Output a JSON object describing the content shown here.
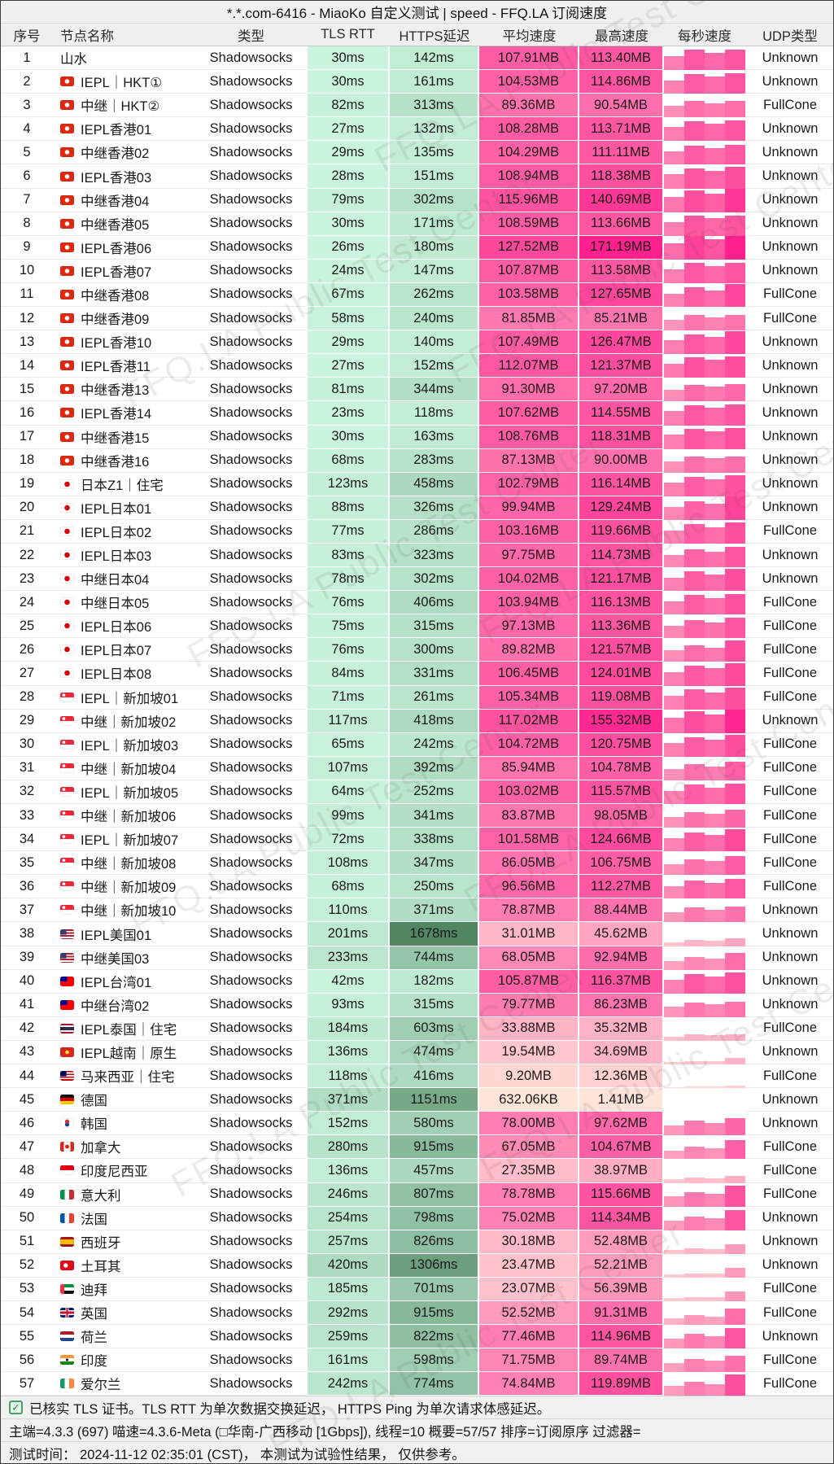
{
  "window_title": "*.*.com-6416 - MiaoKo 自定义测试 | speed - FFQ.LA 订阅速度",
  "watermark_text": "FFQ.LA Public Test Center",
  "colors": {
    "latency_green_fast": "#cdf6e0",
    "latency_green_slow": "#4e8560",
    "speed_pink_light": "#ffe8da",
    "speed_pink_deep": "#ff1f8d",
    "header_bg": "#efefef",
    "row_bg": "#ffffff",
    "check_green": "#4a9e66"
  },
  "table": {
    "columns": [
      "序号",
      "节点名称",
      "类型",
      "TLS RTT",
      "HTTPS延迟",
      "平均速度",
      "最高速度",
      "每秒速度",
      "UDP类型"
    ],
    "row_fields": [
      "no",
      "flag",
      "name",
      "type",
      "tls_rtt",
      "https_latency",
      "avg_speed",
      "max_speed",
      "udp_type"
    ],
    "bars_pattern": [
      0.72,
      1.04,
      0.9
    ],
    "rows": [
      [
        1,
        "",
        "山水",
        "Shadowsocks",
        "30ms",
        "142ms",
        "107.91MB",
        "113.40MB",
        "Unknown"
      ],
      [
        2,
        "hk",
        "IEPL｜HKT①",
        "Shadowsocks",
        "30ms",
        "161ms",
        "104.53MB",
        "114.86MB",
        "Unknown"
      ],
      [
        3,
        "hk",
        "中继｜HKT②",
        "Shadowsocks",
        "82ms",
        "313ms",
        "89.36MB",
        "90.54MB",
        "FullCone"
      ],
      [
        4,
        "hk",
        "IEPL香港01",
        "Shadowsocks",
        "27ms",
        "132ms",
        "108.28MB",
        "113.71MB",
        "Unknown"
      ],
      [
        5,
        "hk",
        "中继香港02",
        "Shadowsocks",
        "29ms",
        "135ms",
        "104.29MB",
        "111.11MB",
        "Unknown"
      ],
      [
        6,
        "hk",
        "IEPL香港03",
        "Shadowsocks",
        "28ms",
        "151ms",
        "108.94MB",
        "118.38MB",
        "Unknown"
      ],
      [
        7,
        "hk",
        "中继香港04",
        "Shadowsocks",
        "79ms",
        "302ms",
        "115.96MB",
        "140.69MB",
        "Unknown"
      ],
      [
        8,
        "hk",
        "中继香港05",
        "Shadowsocks",
        "30ms",
        "171ms",
        "108.59MB",
        "113.66MB",
        "Unknown"
      ],
      [
        9,
        "hk",
        "IEPL香港06",
        "Shadowsocks",
        "26ms",
        "180ms",
        "127.52MB",
        "171.19MB",
        "Unknown"
      ],
      [
        10,
        "hk",
        "IEPL香港07",
        "Shadowsocks",
        "24ms",
        "147ms",
        "107.87MB",
        "113.58MB",
        "Unknown"
      ],
      [
        11,
        "hk",
        "中继香港08",
        "Shadowsocks",
        "67ms",
        "262ms",
        "103.58MB",
        "127.65MB",
        "FullCone"
      ],
      [
        12,
        "hk",
        "中继香港09",
        "Shadowsocks",
        "58ms",
        "240ms",
        "81.85MB",
        "85.21MB",
        "FullCone"
      ],
      [
        13,
        "hk",
        "IEPL香港10",
        "Shadowsocks",
        "29ms",
        "140ms",
        "107.49MB",
        "126.47MB",
        "Unknown"
      ],
      [
        14,
        "hk",
        "IEPL香港11",
        "Shadowsocks",
        "27ms",
        "152ms",
        "112.07MB",
        "121.37MB",
        "Unknown"
      ],
      [
        15,
        "hk",
        "中继香港13",
        "Shadowsocks",
        "81ms",
        "344ms",
        "91.30MB",
        "97.20MB",
        "Unknown"
      ],
      [
        16,
        "hk",
        "IEPL香港14",
        "Shadowsocks",
        "23ms",
        "118ms",
        "107.62MB",
        "114.55MB",
        "Unknown"
      ],
      [
        17,
        "hk",
        "中继香港15",
        "Shadowsocks",
        "30ms",
        "163ms",
        "108.76MB",
        "118.31MB",
        "Unknown"
      ],
      [
        18,
        "hk",
        "中继香港16",
        "Shadowsocks",
        "68ms",
        "283ms",
        "87.13MB",
        "90.00MB",
        "Unknown"
      ],
      [
        19,
        "jp",
        "日本Z1｜住宅",
        "Shadowsocks",
        "123ms",
        "458ms",
        "102.79MB",
        "116.14MB",
        "Unknown"
      ],
      [
        20,
        "jp",
        "IEPL日本01",
        "Shadowsocks",
        "88ms",
        "326ms",
        "99.94MB",
        "129.24MB",
        "Unknown"
      ],
      [
        21,
        "jp",
        "IEPL日本02",
        "Shadowsocks",
        "77ms",
        "286ms",
        "103.16MB",
        "119.66MB",
        "FullCone"
      ],
      [
        22,
        "jp",
        "IEPL日本03",
        "Shadowsocks",
        "83ms",
        "323ms",
        "97.75MB",
        "114.73MB",
        "Unknown"
      ],
      [
        23,
        "jp",
        "中继日本04",
        "Shadowsocks",
        "78ms",
        "302ms",
        "104.02MB",
        "121.17MB",
        "Unknown"
      ],
      [
        24,
        "jp",
        "中继日本05",
        "Shadowsocks",
        "76ms",
        "406ms",
        "103.94MB",
        "116.13MB",
        "FullCone"
      ],
      [
        25,
        "jp",
        "IEPL日本06",
        "Shadowsocks",
        "75ms",
        "315ms",
        "97.13MB",
        "113.36MB",
        "FullCone"
      ],
      [
        26,
        "jp",
        "IEPL日本07",
        "Shadowsocks",
        "76ms",
        "300ms",
        "89.82MB",
        "121.57MB",
        "FullCone"
      ],
      [
        27,
        "jp",
        "IEPL日本08",
        "Shadowsocks",
        "84ms",
        "331ms",
        "106.45MB",
        "124.01MB",
        "FullCone"
      ],
      [
        28,
        "sg",
        "IEPL｜新加坡01",
        "Shadowsocks",
        "71ms",
        "261ms",
        "105.34MB",
        "119.08MB",
        "FullCone"
      ],
      [
        29,
        "sg",
        "中继｜新加坡02",
        "Shadowsocks",
        "117ms",
        "418ms",
        "117.02MB",
        "155.32MB",
        "Unknown"
      ],
      [
        30,
        "sg",
        "IEPL｜新加坡03",
        "Shadowsocks",
        "65ms",
        "242ms",
        "104.72MB",
        "120.75MB",
        "FullCone"
      ],
      [
        31,
        "sg",
        "中继｜新加坡04",
        "Shadowsocks",
        "107ms",
        "392ms",
        "85.94MB",
        "104.78MB",
        "FullCone"
      ],
      [
        32,
        "sg",
        "IEPL｜新加坡05",
        "Shadowsocks",
        "64ms",
        "252ms",
        "103.02MB",
        "115.57MB",
        "FullCone"
      ],
      [
        33,
        "sg",
        "中继｜新加坡06",
        "Shadowsocks",
        "99ms",
        "341ms",
        "83.87MB",
        "98.05MB",
        "FullCone"
      ],
      [
        34,
        "sg",
        "IEPL｜新加坡07",
        "Shadowsocks",
        "72ms",
        "338ms",
        "101.58MB",
        "124.66MB",
        "FullCone"
      ],
      [
        35,
        "sg",
        "中继｜新加坡08",
        "Shadowsocks",
        "108ms",
        "347ms",
        "86.05MB",
        "106.75MB",
        "FullCone"
      ],
      [
        36,
        "sg",
        "中继｜新加坡09",
        "Shadowsocks",
        "68ms",
        "250ms",
        "96.56MB",
        "112.27MB",
        "FullCone"
      ],
      [
        37,
        "sg",
        "中继｜新加坡10",
        "Shadowsocks",
        "110ms",
        "371ms",
        "78.87MB",
        "88.44MB",
        "Unknown"
      ],
      [
        38,
        "us",
        "IEPL美国01",
        "Shadowsocks",
        "201ms",
        "1678ms",
        "31.01MB",
        "45.62MB",
        "Unknown"
      ],
      [
        39,
        "us",
        "中继美国03",
        "Shadowsocks",
        "233ms",
        "744ms",
        "68.05MB",
        "92.94MB",
        "Unknown"
      ],
      [
        40,
        "tw",
        "IEPL台湾01",
        "Shadowsocks",
        "42ms",
        "182ms",
        "105.87MB",
        "116.37MB",
        "Unknown"
      ],
      [
        41,
        "tw",
        "中继台湾02",
        "Shadowsocks",
        "93ms",
        "315ms",
        "79.77MB",
        "86.23MB",
        "Unknown"
      ],
      [
        42,
        "th",
        "IEPL泰国｜住宅",
        "Shadowsocks",
        "184ms",
        "603ms",
        "33.88MB",
        "35.32MB",
        "FullCone"
      ],
      [
        43,
        "vn",
        "IEPL越南｜原生",
        "Shadowsocks",
        "136ms",
        "474ms",
        "19.54MB",
        "34.69MB",
        "Unknown"
      ],
      [
        44,
        "my",
        "马来西亚｜住宅",
        "Shadowsocks",
        "118ms",
        "416ms",
        "9.20MB",
        "12.36MB",
        "FullCone"
      ],
      [
        45,
        "de",
        "德国",
        "Shadowsocks",
        "371ms",
        "1151ms",
        "632.06KB",
        "1.41MB",
        "Unknown"
      ],
      [
        46,
        "kr",
        "韩国",
        "Shadowsocks",
        "152ms",
        "580ms",
        "78.00MB",
        "97.62MB",
        "Unknown"
      ],
      [
        47,
        "ca",
        "加拿大",
        "Shadowsocks",
        "280ms",
        "915ms",
        "67.05MB",
        "104.67MB",
        "FullCone"
      ],
      [
        48,
        "id",
        "印度尼西亚",
        "Shadowsocks",
        "136ms",
        "457ms",
        "27.35MB",
        "38.97MB",
        "FullCone"
      ],
      [
        49,
        "it",
        "意大利",
        "Shadowsocks",
        "246ms",
        "807ms",
        "78.78MB",
        "115.66MB",
        "FullCone"
      ],
      [
        50,
        "fr",
        "法国",
        "Shadowsocks",
        "254ms",
        "798ms",
        "75.02MB",
        "114.34MB",
        "Unknown"
      ],
      [
        51,
        "es",
        "西班牙",
        "Shadowsocks",
        "257ms",
        "826ms",
        "30.18MB",
        "52.48MB",
        "Unknown"
      ],
      [
        52,
        "tr",
        "土耳其",
        "Shadowsocks",
        "420ms",
        "1306ms",
        "23.47MB",
        "52.21MB",
        "Unknown"
      ],
      [
        53,
        "ae",
        "迪拜",
        "Shadowsocks",
        "185ms",
        "701ms",
        "23.07MB",
        "56.39MB",
        "FullCone"
      ],
      [
        54,
        "gb",
        "英国",
        "Shadowsocks",
        "292ms",
        "915ms",
        "52.52MB",
        "91.31MB",
        "FullCone"
      ],
      [
        55,
        "nl",
        "荷兰",
        "Shadowsocks",
        "259ms",
        "822ms",
        "77.46MB",
        "114.96MB",
        "Unknown"
      ],
      [
        56,
        "in",
        "印度",
        "Shadowsocks",
        "161ms",
        "598ms",
        "71.75MB",
        "89.74MB",
        "FullCone"
      ],
      [
        57,
        "ie",
        "爱尔兰",
        "Shadowsocks",
        "242ms",
        "774ms",
        "74.84MB",
        "119.89MB",
        "FullCone"
      ]
    ]
  },
  "footer": {
    "tls_note": "已核实 TLS 证书。TLS RTT 为单次数据交换延迟， HTTPS Ping 为单次请求体感延迟。",
    "config": "主端=4.3.3 (697) 喵速=4.3.6-Meta (□华南-广西移动 [1Gbps]), 线程=10 概要=57/57 排序=订阅原序 过滤器=",
    "test_time": "测试时间： 2024-11-12 02:35:01 (CST)， 本测试为试验性结果， 仅供参考。"
  }
}
